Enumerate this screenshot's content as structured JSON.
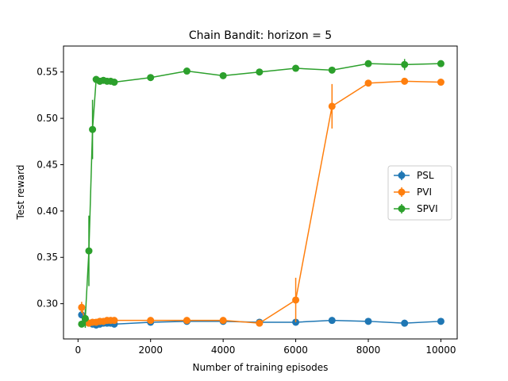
{
  "chart_data": {
    "type": "line",
    "title": "Chain Bandit: horizon = 5",
    "xlabel": "Number of training episodes",
    "ylabel": "Test reward",
    "xlim": [
      -400,
      10450
    ],
    "ylim": [
      0.262,
      0.578
    ],
    "xticks": [
      0,
      2000,
      4000,
      6000,
      8000,
      10000
    ],
    "xtick_labels": [
      "0",
      "2000",
      "4000",
      "6000",
      "8000",
      "10000"
    ],
    "yticks": [
      0.3,
      0.35,
      0.4,
      0.45,
      0.5,
      0.55
    ],
    "ytick_labels": [
      "0.30",
      "0.35",
      "0.40",
      "0.45",
      "0.50",
      "0.55"
    ],
    "grid": false,
    "legend_position": "center-right",
    "series": [
      {
        "name": "PSL",
        "color": "#1f77b4",
        "x": [
          100,
          200,
          300,
          400,
          500,
          600,
          700,
          800,
          900,
          1000,
          2000,
          3000,
          4000,
          5000,
          6000,
          7000,
          8000,
          9000,
          10000
        ],
        "y": [
          0.288,
          0.283,
          0.279,
          0.278,
          0.277,
          0.278,
          0.279,
          0.279,
          0.279,
          0.278,
          0.28,
          0.281,
          0.281,
          0.28,
          0.28,
          0.282,
          0.281,
          0.279,
          0.281
        ],
        "err": [
          0.003,
          0.002,
          0.001,
          0.001,
          0.001,
          0.001,
          0.001,
          0.001,
          0.001,
          0.001,
          0.001,
          0.001,
          0.001,
          0.001,
          0.001,
          0.001,
          0.001,
          0.001,
          0.001
        ]
      },
      {
        "name": "PVI",
        "color": "#ff7f0e",
        "x": [
          100,
          200,
          300,
          400,
          500,
          600,
          700,
          800,
          900,
          1000,
          2000,
          3000,
          4000,
          5000,
          6000,
          7000,
          8000,
          9000,
          10000
        ],
        "y": [
          0.296,
          0.28,
          0.279,
          0.28,
          0.28,
          0.281,
          0.281,
          0.282,
          0.282,
          0.282,
          0.282,
          0.282,
          0.282,
          0.279,
          0.304,
          0.513,
          0.538,
          0.54,
          0.539
        ],
        "err": [
          0.006,
          0.002,
          0.001,
          0.001,
          0.001,
          0.001,
          0.001,
          0.001,
          0.001,
          0.001,
          0.001,
          0.001,
          0.002,
          0.001,
          0.024,
          0.024,
          0.002,
          0.002,
          0.002
        ]
      },
      {
        "name": "SPVI",
        "color": "#2ca02c",
        "x": [
          100,
          200,
          300,
          400,
          500,
          600,
          700,
          800,
          900,
          1000,
          2000,
          3000,
          4000,
          5000,
          6000,
          7000,
          8000,
          9000,
          10000
        ],
        "y": [
          0.278,
          0.284,
          0.357,
          0.488,
          0.542,
          0.54,
          0.541,
          0.54,
          0.54,
          0.539,
          0.544,
          0.551,
          0.546,
          0.55,
          0.554,
          0.552,
          0.559,
          0.558,
          0.559
        ],
        "err": [
          0.003,
          0.01,
          0.038,
          0.032,
          0.003,
          0.002,
          0.002,
          0.002,
          0.002,
          0.002,
          0.002,
          0.002,
          0.002,
          0.002,
          0.002,
          0.002,
          0.002,
          0.006,
          0.002
        ]
      }
    ]
  }
}
